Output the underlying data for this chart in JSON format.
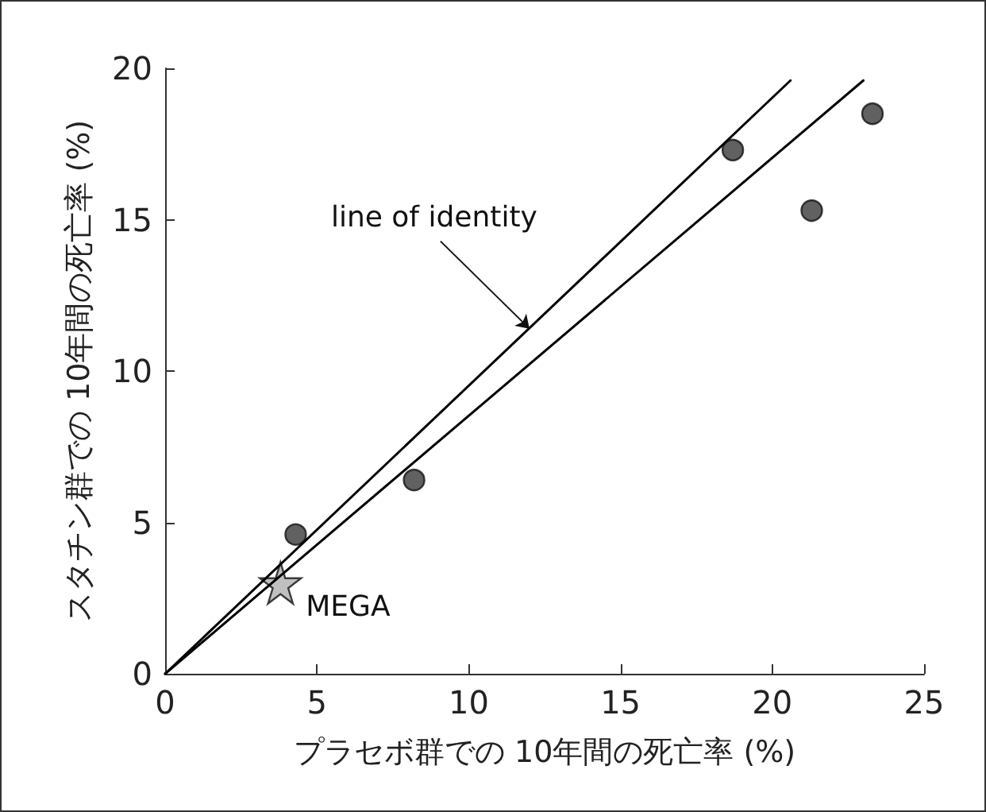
{
  "chart_data": {
    "type": "scatter",
    "xlabel": "プラセボ群での 10年間の死亡率 (%)",
    "ylabel": "スタチン群での 10年間の死亡率 (%)",
    "xlim": [
      0,
      25
    ],
    "xticks": [
      0,
      5,
      10,
      15,
      20,
      25
    ],
    "ylim": [
      0,
      20
    ],
    "yticks": [
      0,
      5,
      10,
      15,
      20
    ],
    "grid": false,
    "series": [
      {
        "type": "line",
        "x": [
          0,
          20.6
        ],
        "values": [
          0,
          19.6
        ],
        "color": "#000000",
        "marker": "none",
        "line_style": "solid"
      },
      {
        "type": "line",
        "x": [
          0,
          23
        ],
        "values": [
          0,
          19.6
        ],
        "color": "#000000",
        "marker": "none",
        "line_style": "solid"
      },
      {
        "x": [
          4.3,
          8.2,
          18.7,
          21.3,
          23.3
        ],
        "values": [
          4.6,
          6.4,
          17.3,
          15.3,
          18.5
        ],
        "color": "#3a3a3a",
        "marker": "circle"
      },
      {
        "x": [
          3.8
        ],
        "values": [
          3.0
        ],
        "color": "#b0b0b0",
        "marker": "star"
      }
    ],
    "annotations": [
      {
        "text": "line of identity",
        "x": 12,
        "y": 11.4
      },
      {
        "text": "MEGA",
        "x": 3.8,
        "y": 3.0
      }
    ]
  }
}
